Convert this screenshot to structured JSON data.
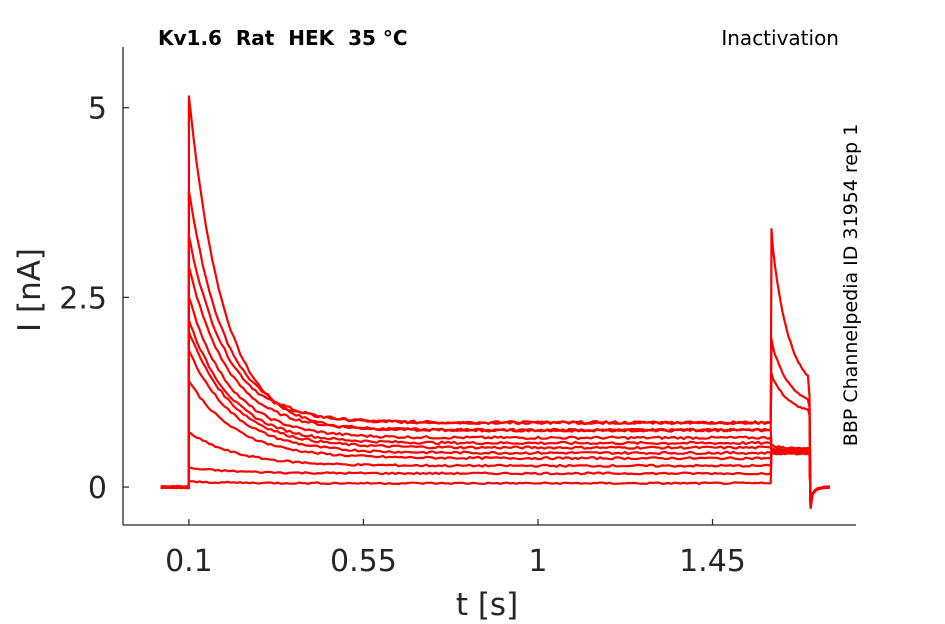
{
  "header": {
    "title": "Kv1.6  Rat  HEK  35 °C",
    "protocol": "Inactivation",
    "source_id": "BBP Channelpedia ID 31954 rep 1"
  },
  "colors": {
    "trace": "#ff0000",
    "axis": "#262626"
  },
  "chart_data": {
    "type": "line",
    "title": "Kv1.6  Rat  HEK  35 °C",
    "xlabel": "t [s]",
    "ylabel": "I [nA]",
    "x_ticks": [
      0.1,
      0.55,
      1,
      1.45
    ],
    "x_tick_labels": [
      "0.1",
      "0.55",
      "1",
      "1.45"
    ],
    "y_ticks": [
      0,
      2.5,
      5
    ],
    "y_tick_labels": [
      "0",
      "2.5",
      "5"
    ],
    "xlim": [
      -0.07,
      1.82
    ],
    "ylim": [
      -0.5,
      5.8
    ],
    "grid": false,
    "legend": "none",
    "pulse_times": {
      "baseline_start": 0.03,
      "step_on": 0.1,
      "step_off": 1.6,
      "test_off": 1.7,
      "end": 1.75
    },
    "series": [
      {
        "peak": 5.15,
        "steady": 0.75,
        "test_peak": 3.4,
        "test_end": 1.2
      },
      {
        "peak": 3.9,
        "steady": 0.85,
        "test_peak": 1.95,
        "test_end": 1.05
      },
      {
        "peak": 3.3,
        "steady": 0.85,
        "test_peak": 1.5,
        "test_end": 0.95
      },
      {
        "peak": 2.9,
        "steady": 0.75,
        "test_peak": 0.55,
        "test_end": 0.5
      },
      {
        "peak": 2.5,
        "steady": 0.65,
        "test_peak": 0.5,
        "test_end": 0.5
      },
      {
        "peak": 2.2,
        "steady": 0.58,
        "test_peak": 0.5,
        "test_end": 0.5
      },
      {
        "peak": 2.05,
        "steady": 0.52,
        "test_peak": 0.48,
        "test_end": 0.48
      },
      {
        "peak": 1.8,
        "steady": 0.45,
        "test_peak": 0.47,
        "test_end": 0.47
      },
      {
        "peak": 1.4,
        "steady": 0.38,
        "test_peak": 0.46,
        "test_end": 0.46
      },
      {
        "peak": 0.72,
        "steady": 0.28,
        "test_peak": 0.45,
        "test_end": 0.45
      },
      {
        "peak": 0.25,
        "steady": 0.18,
        "test_peak": 0.45,
        "test_end": 0.45
      },
      {
        "peak": 0.07,
        "steady": 0.05,
        "test_peak": 0.44,
        "test_end": 0.44
      }
    ]
  }
}
